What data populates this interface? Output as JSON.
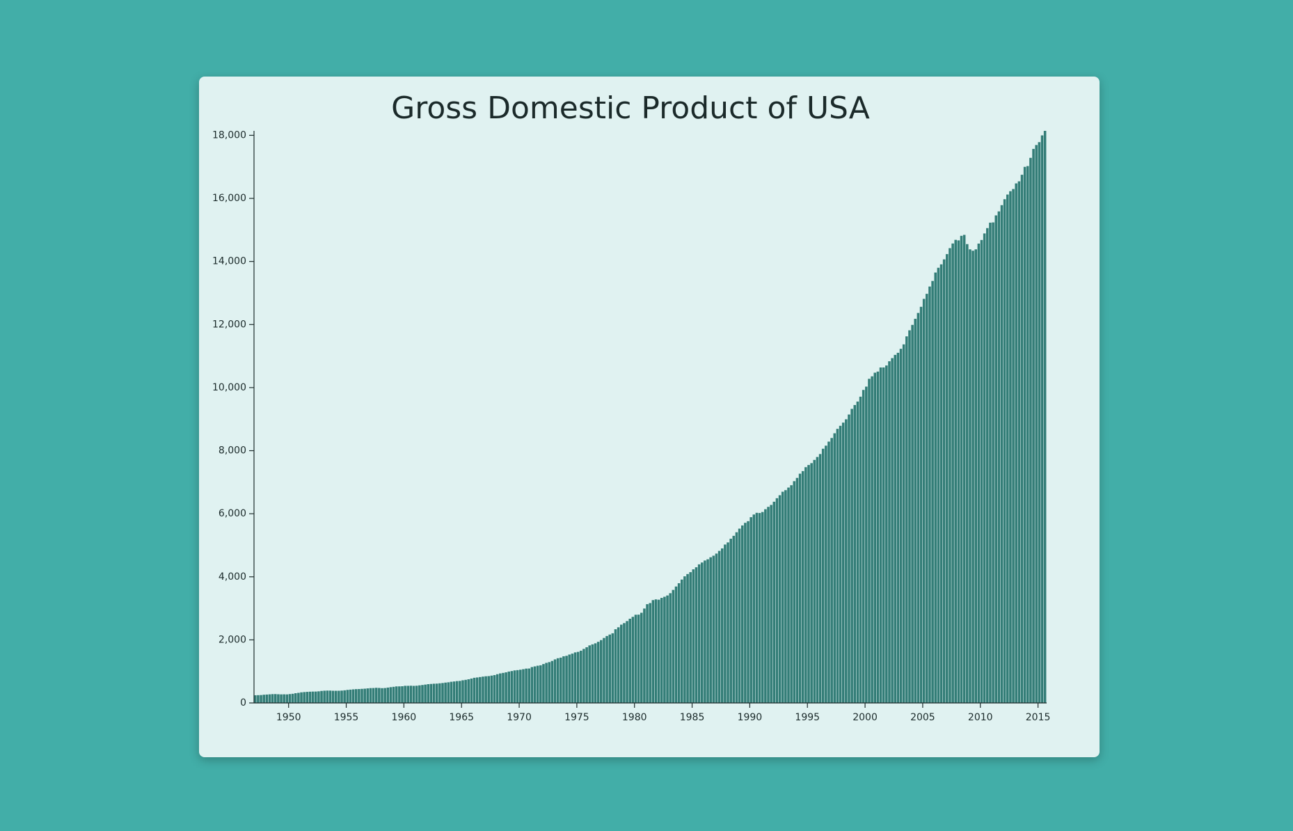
{
  "chart_data": {
    "type": "bar",
    "title": "Gross Domestic Product of USA",
    "color": "#337d77",
    "x": [
      1947,
      1947.25,
      1947.5,
      1947.75,
      1948,
      1948.25,
      1948.5,
      1948.75,
      1949,
      1949.25,
      1949.5,
      1949.75,
      1950,
      1950.25,
      1950.5,
      1950.75,
      1951,
      1951.25,
      1951.5,
      1951.75,
      1952,
      1952.25,
      1952.5,
      1952.75,
      1953,
      1953.25,
      1953.5,
      1953.75,
      1954,
      1954.25,
      1954.5,
      1954.75,
      1955,
      1955.25,
      1955.5,
      1955.75,
      1956,
      1956.25,
      1956.5,
      1956.75,
      1957,
      1957.25,
      1957.5,
      1957.75,
      1958,
      1958.25,
      1958.5,
      1958.75,
      1959,
      1959.25,
      1959.5,
      1959.75,
      1960,
      1960.25,
      1960.5,
      1960.75,
      1961,
      1961.25,
      1961.5,
      1961.75,
      1962,
      1962.25,
      1962.5,
      1962.75,
      1963,
      1963.25,
      1963.5,
      1963.75,
      1964,
      1964.25,
      1964.5,
      1964.75,
      1965,
      1965.25,
      1965.5,
      1965.75,
      1966,
      1966.25,
      1966.5,
      1966.75,
      1967,
      1967.25,
      1967.5,
      1967.75,
      1968,
      1968.25,
      1968.5,
      1968.75,
      1969,
      1969.25,
      1969.5,
      1969.75,
      1970,
      1970.25,
      1970.5,
      1970.75,
      1971,
      1971.25,
      1971.5,
      1971.75,
      1972,
      1972.25,
      1972.5,
      1972.75,
      1973,
      1973.25,
      1973.5,
      1973.75,
      1974,
      1974.25,
      1974.5,
      1974.75,
      1975,
      1975.25,
      1975.5,
      1975.75,
      1976,
      1976.25,
      1976.5,
      1976.75,
      1977,
      1977.25,
      1977.5,
      1977.75,
      1978,
      1978.25,
      1978.5,
      1978.75,
      1979,
      1979.25,
      1979.5,
      1979.75,
      1980,
      1980.25,
      1980.5,
      1980.75,
      1981,
      1981.25,
      1981.5,
      1981.75,
      1982,
      1982.25,
      1982.5,
      1982.75,
      1983,
      1983.25,
      1983.5,
      1983.75,
      1984,
      1984.25,
      1984.5,
      1984.75,
      1985,
      1985.25,
      1985.5,
      1985.75,
      1986,
      1986.25,
      1986.5,
      1986.75,
      1987,
      1987.25,
      1987.5,
      1987.75,
      1988,
      1988.25,
      1988.5,
      1988.75,
      1989,
      1989.25,
      1989.5,
      1989.75,
      1990,
      1990.25,
      1990.5,
      1990.75,
      1991,
      1991.25,
      1991.5,
      1991.75,
      1992,
      1992.25,
      1992.5,
      1992.75,
      1993,
      1993.25,
      1993.5,
      1993.75,
      1994,
      1994.25,
      1994.5,
      1994.75,
      1995,
      1995.25,
      1995.5,
      1995.75,
      1996,
      1996.25,
      1996.5,
      1996.75,
      1997,
      1997.25,
      1997.5,
      1997.75,
      1998,
      1998.25,
      1998.5,
      1998.75,
      1999,
      1999.25,
      1999.5,
      1999.75,
      2000,
      2000.25,
      2000.5,
      2000.75,
      2001,
      2001.25,
      2001.5,
      2001.75,
      2002,
      2002.25,
      2002.5,
      2002.75,
      2003,
      2003.25,
      2003.5,
      2003.75,
      2004,
      2004.25,
      2004.5,
      2004.75,
      2005,
      2005.25,
      2005.5,
      2005.75,
      2006,
      2006.25,
      2006.5,
      2006.75,
      2007,
      2007.25,
      2007.5,
      2007.75,
      2008,
      2008.25,
      2008.5,
      2008.75,
      2009,
      2009.25,
      2009.5,
      2009.75,
      2010,
      2010.25,
      2010.5,
      2010.75,
      2011,
      2011.25,
      2011.5,
      2011.75,
      2012,
      2012.25,
      2012.5,
      2012.75,
      2013,
      2013.25,
      2013.5,
      2013.75,
      2014,
      2014.25,
      2014.5,
      2014.75,
      2015,
      2015.25,
      2015.5
    ],
    "values": [
      243.1,
      246.3,
      250.1,
      260.3,
      266.2,
      272.9,
      279.5,
      280.7,
      275.4,
      271.7,
      273.3,
      271.0,
      281.2,
      290.7,
      308.5,
      320.3,
      336.4,
      344.5,
      351.8,
      356.6,
      360.2,
      361.4,
      368.1,
      381.2,
      388.5,
      392.3,
      391.7,
      386.5,
      385.9,
      386.7,
      391.6,
      400.3,
      413.8,
      422.2,
      430.9,
      437.8,
      440.5,
      446.8,
      452.0,
      461.3,
      470.6,
      472.8,
      480.3,
      475.7,
      468.4,
      472.8,
      486.7,
      500.4,
      511.1,
      524.2,
      525.2,
      529.3,
      543.3,
      542.7,
      546.0,
      541.1,
      545.9,
      557.4,
      568.2,
      581.6,
      595.2,
      602.6,
      609.6,
      613.1,
      622.7,
      631.8,
      645.0,
      654.8,
      671.1,
      680.8,
      692.8,
      698.4,
      719.2,
      732.4,
      750.2,
      773.1,
      797.3,
      807.2,
      820.8,
      834.9,
      846.0,
      851.1,
      866.6,
      883.2,
      911.1,
      936.3,
      952.3,
      970.1,
      995.4,
      1011.4,
      1032.0,
      1040.7,
      1053.5,
      1070.1,
      1088.5,
      1091.5,
      1137.8,
      1159.4,
      1180.3,
      1193.6,
      1233.8,
      1270.1,
      1293.8,
      1332.0,
      1380.7,
      1417.6,
      1436.8,
      1479.1,
      1494.7,
      1534.2,
      1563.4,
      1603.0,
      1619.6,
      1656.4,
      1713.8,
      1765.9,
      1824.5,
      1856.9,
      1890.5,
      1938.4,
      1992.5,
      2060.2,
      2122.4,
      2168.7,
      2208.7,
      2336.6,
      2398.9,
      2482.2,
      2531.6,
      2595.9,
      2670.4,
      2730.7,
      2796.5,
      2799.9,
      2860.0,
      2993.5,
      3131.8,
      3167.3,
      3261.2,
      3283.5,
      3273.8,
      3331.3,
      3367.1,
      3407.8,
      3480.3,
      3583.8,
      3692.3,
      3796.1,
      3912.8,
      4015.0,
      4087.4,
      4147.6,
      4237.0,
      4302.3,
      4394.6,
      4453.1,
      4516.3,
      4555.2,
      4619.6,
      4669.4,
      4736.2,
      4821.5,
      4900.5,
      5022.7,
      5090.6,
      5207.7,
      5299.5,
      5412.7,
      5527.4,
      5628.4,
      5711.6,
      5763.4,
      5890.8,
      5974.7,
      6029.5,
      6023.3,
      6054.9,
      6143.6,
      6218.4,
      6279.3,
      6380.8,
      6492.3,
      6586.5,
      6697.6,
      6748.2,
      6829.6,
      6904.2,
      7032.8,
      7136.3,
      7269.8,
      7352.3,
      7476.7,
      7545.3,
      7604.9,
      7706.5,
      7799.5,
      7893.1,
      8061.5,
      8159.0,
      8287.1,
      8402.1,
      8551.9,
      8691.8,
      8788.3,
      8889.7,
      8994.7,
      9146.5,
      9325.7,
      9447.1,
      9557.0,
      9712.3,
      9926.1,
      10031.0,
      10278.3,
      10357.4,
      10472.3,
      10508.1,
      10638.4,
      10639.5,
      10701.3,
      10834.4,
      10934.8,
      11037.1,
      11103.8,
      11230.1,
      11370.7,
      11625.1,
      11816.8,
      11988.4,
      12181.4,
      12367.7,
      12562.2,
      12813.7,
      12974.1,
      13205.4,
      13381.6,
      13648.9,
      13799.8,
      13908.5,
      14066.4,
      14233.2,
      14422.3,
      14569.7,
      14685.3,
      14668.4,
      14813.0,
      14843.0,
      14549.9,
      14383.9,
      14340.4,
      14384.1,
      14566.5,
      14681.1,
      14888.6,
      15057.7,
      15230.2,
      15238.4,
      15460.9,
      15587.1,
      15785.3,
      15973.9,
      16121.9,
      16227.9,
      16297.3,
      16475.4,
      16541.4,
      16749.3,
      16999.9,
      17025.2,
      17285.6,
      17569.4,
      17692.2,
      17783.6,
      17998.3,
      18141.9
    ],
    "xlim": [
      1947,
      2015.75
    ],
    "xticks": [
      1950,
      1955,
      1960,
      1965,
      1970,
      1975,
      1980,
      1985,
      1990,
      1995,
      2000,
      2005,
      2010,
      2015
    ],
    "ylim": [
      0,
      18141.9
    ],
    "yticks": [
      0,
      {
        "value": 2000,
        "label": "2,000"
      },
      {
        "value": 4000,
        "label": "4,000"
      },
      {
        "value": 6000,
        "label": "6,000"
      },
      {
        "value": 8000,
        "label": "8,000"
      },
      {
        "value": 10000,
        "label": "10,000"
      },
      {
        "value": 12000,
        "label": "12,000"
      },
      {
        "value": 14000,
        "label": "14,000"
      },
      {
        "value": 16000,
        "label": "16,000"
      },
      {
        "value": 18000,
        "label": "18,000"
      }
    ]
  }
}
